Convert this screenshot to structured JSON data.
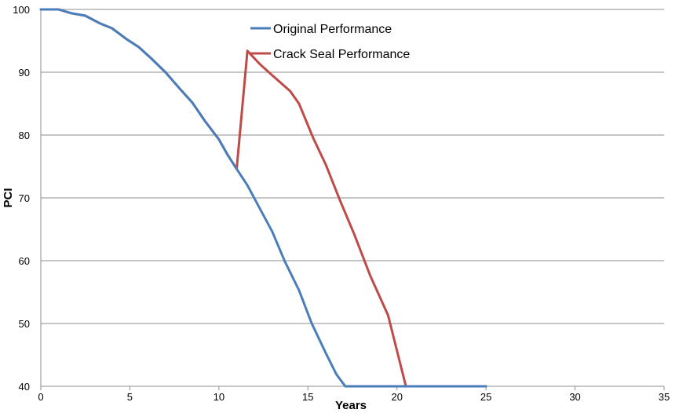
{
  "chart_data": {
    "type": "line",
    "title": "",
    "xlabel": "Years",
    "ylabel": "PCI",
    "xlim": [
      0,
      35
    ],
    "ylim": [
      40,
      100
    ],
    "x_ticks": [
      "0",
      "5",
      "10",
      "15",
      "20",
      "25",
      "30",
      "35"
    ],
    "y_ticks": [
      "40",
      "50",
      "60",
      "70",
      "80",
      "90",
      "100"
    ],
    "grid": "horizontal",
    "legend_position": "top-center",
    "series": [
      {
        "name": "Original Performance",
        "color": "#4a7ebb",
        "points": [
          [
            0,
            100
          ],
          [
            1,
            100
          ],
          [
            1.7,
            99.4
          ],
          [
            2.5,
            99
          ],
          [
            3.3,
            97.8
          ],
          [
            4,
            97
          ],
          [
            4.8,
            95.3
          ],
          [
            5.5,
            94
          ],
          [
            6.2,
            92.2
          ],
          [
            7,
            90
          ],
          [
            7.8,
            87.4
          ],
          [
            8.5,
            85.2
          ],
          [
            9.2,
            82.3
          ],
          [
            10,
            79.3
          ],
          [
            10.5,
            76.8
          ],
          [
            11,
            74.6
          ],
          [
            11.6,
            72
          ],
          [
            12.3,
            68.3
          ],
          [
            13,
            64.6
          ],
          [
            13.7,
            59.9
          ],
          [
            14.5,
            55.3
          ],
          [
            15.2,
            50.1
          ],
          [
            16,
            45.3
          ],
          [
            16.6,
            41.9
          ],
          [
            17.1,
            40
          ],
          [
            25,
            40
          ]
        ]
      },
      {
        "name": "Crack Seal Performance",
        "color": "#be4b48",
        "points": [
          [
            0,
            100
          ],
          [
            1,
            100
          ],
          [
            1.7,
            99.4
          ],
          [
            2.5,
            99
          ],
          [
            3.3,
            97.8
          ],
          [
            4,
            97
          ],
          [
            4.8,
            95.3
          ],
          [
            5.5,
            94
          ],
          [
            6.2,
            92.2
          ],
          [
            7,
            90
          ],
          [
            7.8,
            87.4
          ],
          [
            8.5,
            85.2
          ],
          [
            9.2,
            82.3
          ],
          [
            10,
            79.3
          ],
          [
            10.5,
            76.8
          ],
          [
            11,
            74.6
          ],
          [
            11.6,
            93.4
          ],
          [
            12.3,
            91.3
          ],
          [
            13,
            89.5
          ],
          [
            14,
            87
          ],
          [
            14.5,
            85
          ],
          [
            15.3,
            79.5
          ],
          [
            16,
            75.3
          ],
          [
            16.8,
            69.6
          ],
          [
            17.6,
            64.2
          ],
          [
            18.5,
            57.6
          ],
          [
            19.5,
            51.3
          ],
          [
            20.5,
            40
          ],
          [
            25,
            40
          ]
        ]
      }
    ]
  }
}
